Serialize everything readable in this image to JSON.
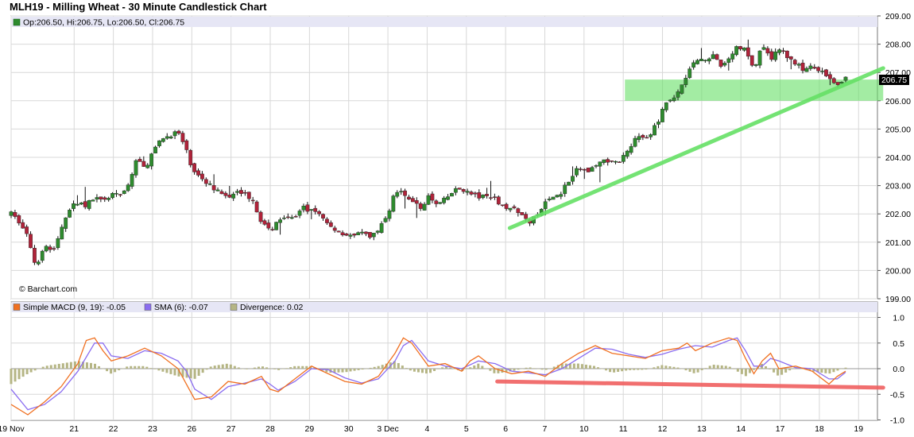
{
  "title": "MLH19 - Milling Wheat - 30 Minute Candlestick Chart",
  "watermark": "© Barchart.com",
  "colors": {
    "up": "#2e8b2e",
    "down": "#b0233a",
    "band": "#e6e6f5",
    "macd": "#f07020",
    "sma": "#8a6cf0",
    "divergence": "#b5b584",
    "green_overlay": "#66e066",
    "red_overlay": "#f06060",
    "grid": "#d8d8d8"
  },
  "price_legend": {
    "text": "Op:206.50, Hi:206.75, Lo:206.50, Cl:206.75"
  },
  "price_last_label": "206.75",
  "macd_legend": [
    {
      "text": "Simple MACD (9, 19): -0.05",
      "color": "#f07020"
    },
    {
      "text": "SMA (6): -0.07",
      "color": "#8a6cf0"
    },
    {
      "text": "Divergence: 0.02",
      "color": "#b5b584"
    }
  ],
  "chart_data": [
    {
      "type": "candlestick",
      "title": "MLH19 - Milling Wheat - 30 Minute Candlestick Chart",
      "yticks": [
        "199.00",
        "200.00",
        "201.00",
        "202.00",
        "203.00",
        "204.00",
        "205.00",
        "206.00",
        "207.00",
        "208.00",
        "209.00"
      ],
      "ylim": [
        199,
        209
      ],
      "xticks": [
        {
          "label": "19 Nov",
          "t": 0
        },
        {
          "label": "21",
          "t": 0.0755
        },
        {
          "label": "22",
          "t": 0.1225
        },
        {
          "label": "23",
          "t": 0.1695
        },
        {
          "label": "26",
          "t": 0.2165
        },
        {
          "label": "27",
          "t": 0.2635
        },
        {
          "label": "28",
          "t": 0.3105
        },
        {
          "label": "29",
          "t": 0.3575
        },
        {
          "label": "30",
          "t": 0.4045
        },
        {
          "label": "3 Dec",
          "t": 0.4515
        },
        {
          "label": "4",
          "t": 0.4985
        },
        {
          "label": "5",
          "t": 0.5455
        },
        {
          "label": "6",
          "t": 0.5925
        },
        {
          "label": "7",
          "t": 0.6395
        },
        {
          "label": "10",
          "t": 0.6865
        },
        {
          "label": "11",
          "t": 0.7335
        },
        {
          "label": "12",
          "t": 0.7805
        },
        {
          "label": "13",
          "t": 0.8275
        },
        {
          "label": "14",
          "t": 0.8745
        },
        {
          "label": "17",
          "t": 0.9215
        },
        {
          "label": "18",
          "t": 0.9685
        },
        {
          "label": "19",
          "t": 1.0155
        }
      ],
      "close_path": [
        [
          0,
          202.0
        ],
        [
          0.01,
          201.7
        ],
        [
          0.02,
          201.2
        ],
        [
          0.03,
          200.1
        ],
        [
          0.04,
          201.0
        ],
        [
          0.05,
          200.6
        ],
        [
          0.06,
          201.5
        ],
        [
          0.07,
          202.2
        ],
        [
          0.08,
          202.4
        ],
        [
          0.09,
          202.3
        ],
        [
          0.1,
          202.6
        ],
        [
          0.11,
          202.4
        ],
        [
          0.12,
          202.7
        ],
        [
          0.13,
          202.6
        ],
        [
          0.14,
          203.0
        ],
        [
          0.15,
          203.9
        ],
        [
          0.16,
          203.6
        ],
        [
          0.17,
          204.2
        ],
        [
          0.18,
          204.6
        ],
        [
          0.19,
          204.8
        ],
        [
          0.2,
          204.9
        ],
        [
          0.21,
          204.2
        ],
        [
          0.22,
          203.4
        ],
        [
          0.23,
          203.2
        ],
        [
          0.24,
          203.0
        ],
        [
          0.25,
          202.7
        ],
        [
          0.26,
          202.5
        ],
        [
          0.27,
          202.9
        ],
        [
          0.28,
          202.7
        ],
        [
          0.29,
          202.5
        ],
        [
          0.3,
          201.7
        ],
        [
          0.31,
          201.4
        ],
        [
          0.32,
          201.8
        ],
        [
          0.33,
          202.0
        ],
        [
          0.34,
          201.9
        ],
        [
          0.35,
          202.2
        ],
        [
          0.36,
          202.1
        ],
        [
          0.37,
          202.0
        ],
        [
          0.38,
          201.6
        ],
        [
          0.39,
          201.4
        ],
        [
          0.4,
          201.3
        ],
        [
          0.41,
          201.2
        ],
        [
          0.42,
          201.3
        ],
        [
          0.43,
          201.2
        ],
        [
          0.44,
          201.4
        ],
        [
          0.45,
          201.9
        ],
        [
          0.46,
          202.8
        ],
        [
          0.47,
          202.7
        ],
        [
          0.48,
          202.5
        ],
        [
          0.49,
          202.2
        ],
        [
          0.5,
          202.6
        ],
        [
          0.51,
          202.3
        ],
        [
          0.52,
          202.5
        ],
        [
          0.53,
          202.8
        ],
        [
          0.54,
          202.9
        ],
        [
          0.55,
          202.7
        ],
        [
          0.56,
          202.6
        ],
        [
          0.57,
          202.6
        ],
        [
          0.58,
          202.5
        ],
        [
          0.59,
          202.3
        ],
        [
          0.6,
          202.2
        ],
        [
          0.61,
          202.0
        ],
        [
          0.62,
          201.7
        ],
        [
          0.63,
          201.9
        ],
        [
          0.64,
          202.4
        ],
        [
          0.65,
          202.6
        ],
        [
          0.66,
          202.8
        ],
        [
          0.67,
          203.3
        ],
        [
          0.68,
          203.6
        ],
        [
          0.69,
          203.5
        ],
        [
          0.7,
          203.7
        ],
        [
          0.71,
          203.9
        ],
        [
          0.72,
          203.8
        ],
        [
          0.73,
          203.9
        ],
        [
          0.74,
          204.3
        ],
        [
          0.75,
          204.8
        ],
        [
          0.76,
          204.6
        ],
        [
          0.77,
          205.0
        ],
        [
          0.78,
          205.6
        ],
        [
          0.79,
          206.1
        ],
        [
          0.8,
          206.3
        ],
        [
          0.81,
          207.0
        ],
        [
          0.82,
          207.4
        ],
        [
          0.83,
          207.5
        ],
        [
          0.84,
          207.6
        ],
        [
          0.85,
          207.2
        ],
        [
          0.86,
          207.5
        ],
        [
          0.87,
          207.9
        ],
        [
          0.88,
          207.8
        ],
        [
          0.89,
          207.1
        ],
        [
          0.9,
          207.9
        ],
        [
          0.91,
          207.5
        ],
        [
          0.92,
          207.8
        ],
        [
          0.93,
          207.6
        ],
        [
          0.94,
          207.3
        ],
        [
          0.95,
          207.1
        ],
        [
          0.96,
          207.2
        ],
        [
          0.97,
          207.0
        ],
        [
          0.98,
          206.9
        ],
        [
          0.99,
          206.6
        ],
        [
          1.0,
          206.75
        ]
      ]
    },
    {
      "type": "line",
      "title": "Simple MACD (9, 19)",
      "yticks": [
        "-1.0",
        "-0.5",
        "0.0",
        "0.5",
        "1.0"
      ],
      "ylim": [
        -1.0,
        1.0
      ],
      "series": [
        {
          "name": "Simple MACD (9, 19)",
          "key": "macd"
        },
        {
          "name": "SMA (6)",
          "key": "sma"
        },
        {
          "name": "Divergence",
          "key": "divergence"
        }
      ],
      "macd": [
        [
          0,
          -0.7
        ],
        [
          0.02,
          -0.9
        ],
        [
          0.04,
          -0.65
        ],
        [
          0.06,
          -0.35
        ],
        [
          0.08,
          0.1
        ],
        [
          0.09,
          0.55
        ],
        [
          0.1,
          0.6
        ],
        [
          0.11,
          0.35
        ],
        [
          0.12,
          0.15
        ],
        [
          0.14,
          0.25
        ],
        [
          0.16,
          0.4
        ],
        [
          0.18,
          0.25
        ],
        [
          0.2,
          0.0
        ],
        [
          0.21,
          -0.3
        ],
        [
          0.22,
          -0.6
        ],
        [
          0.24,
          -0.55
        ],
        [
          0.26,
          -0.25
        ],
        [
          0.28,
          -0.3
        ],
        [
          0.3,
          -0.15
        ],
        [
          0.31,
          -0.4
        ],
        [
          0.32,
          -0.45
        ],
        [
          0.34,
          -0.2
        ],
        [
          0.36,
          0.05
        ],
        [
          0.38,
          -0.1
        ],
        [
          0.4,
          -0.25
        ],
        [
          0.42,
          -0.3
        ],
        [
          0.44,
          -0.15
        ],
        [
          0.46,
          0.3
        ],
        [
          0.47,
          0.6
        ],
        [
          0.48,
          0.5
        ],
        [
          0.5,
          0.05
        ],
        [
          0.52,
          0.1
        ],
        [
          0.54,
          -0.05
        ],
        [
          0.55,
          0.15
        ],
        [
          0.56,
          0.25
        ],
        [
          0.58,
          0.0
        ],
        [
          0.6,
          -0.1
        ],
        [
          0.62,
          -0.05
        ],
        [
          0.64,
          -0.15
        ],
        [
          0.66,
          0.1
        ],
        [
          0.68,
          0.3
        ],
        [
          0.7,
          0.45
        ],
        [
          0.72,
          0.3
        ],
        [
          0.74,
          0.25
        ],
        [
          0.76,
          0.2
        ],
        [
          0.78,
          0.35
        ],
        [
          0.8,
          0.4
        ],
        [
          0.81,
          0.5
        ],
        [
          0.82,
          0.35
        ],
        [
          0.84,
          0.5
        ],
        [
          0.86,
          0.6
        ],
        [
          0.87,
          0.55
        ],
        [
          0.88,
          0.2
        ],
        [
          0.89,
          -0.1
        ],
        [
          0.9,
          0.15
        ],
        [
          0.91,
          0.3
        ],
        [
          0.92,
          0.0
        ],
        [
          0.94,
          0.05
        ],
        [
          0.96,
          -0.05
        ],
        [
          0.98,
          -0.3
        ],
        [
          0.99,
          -0.15
        ],
        [
          1.0,
          -0.05
        ]
      ],
      "sma": [
        [
          0,
          -0.4
        ],
        [
          0.02,
          -0.8
        ],
        [
          0.04,
          -0.7
        ],
        [
          0.06,
          -0.45
        ],
        [
          0.08,
          -0.05
        ],
        [
          0.1,
          0.5
        ],
        [
          0.11,
          0.5
        ],
        [
          0.12,
          0.25
        ],
        [
          0.14,
          0.2
        ],
        [
          0.16,
          0.35
        ],
        [
          0.18,
          0.3
        ],
        [
          0.2,
          0.15
        ],
        [
          0.21,
          -0.05
        ],
        [
          0.22,
          -0.4
        ],
        [
          0.24,
          -0.6
        ],
        [
          0.26,
          -0.35
        ],
        [
          0.28,
          -0.28
        ],
        [
          0.3,
          -0.2
        ],
        [
          0.31,
          -0.3
        ],
        [
          0.32,
          -0.42
        ],
        [
          0.34,
          -0.25
        ],
        [
          0.36,
          0.0
        ],
        [
          0.38,
          -0.02
        ],
        [
          0.4,
          -0.18
        ],
        [
          0.42,
          -0.28
        ],
        [
          0.44,
          -0.2
        ],
        [
          0.46,
          0.15
        ],
        [
          0.47,
          0.45
        ],
        [
          0.48,
          0.55
        ],
        [
          0.5,
          0.15
        ],
        [
          0.52,
          0.05
        ],
        [
          0.54,
          0.0
        ],
        [
          0.56,
          0.15
        ],
        [
          0.58,
          0.1
        ],
        [
          0.6,
          -0.05
        ],
        [
          0.62,
          -0.08
        ],
        [
          0.64,
          -0.12
        ],
        [
          0.66,
          0.0
        ],
        [
          0.68,
          0.2
        ],
        [
          0.7,
          0.4
        ],
        [
          0.72,
          0.38
        ],
        [
          0.74,
          0.28
        ],
        [
          0.76,
          0.22
        ],
        [
          0.78,
          0.28
        ],
        [
          0.8,
          0.38
        ],
        [
          0.82,
          0.45
        ],
        [
          0.84,
          0.42
        ],
        [
          0.86,
          0.55
        ],
        [
          0.87,
          0.6
        ],
        [
          0.88,
          0.35
        ],
        [
          0.89,
          0.05
        ],
        [
          0.9,
          0.05
        ],
        [
          0.91,
          0.2
        ],
        [
          0.92,
          0.15
        ],
        [
          0.94,
          0.02
        ],
        [
          0.96,
          0.0
        ],
        [
          0.98,
          -0.2
        ],
        [
          0.99,
          -0.2
        ],
        [
          1.0,
          -0.07
        ]
      ],
      "divergence": [
        [
          0,
          -0.3
        ],
        [
          0.02,
          -0.1
        ],
        [
          0.04,
          0.05
        ],
        [
          0.06,
          0.1
        ],
        [
          0.08,
          0.15
        ],
        [
          0.1,
          0.1
        ],
        [
          0.12,
          -0.1
        ],
        [
          0.14,
          0.05
        ],
        [
          0.16,
          0.05
        ],
        [
          0.18,
          -0.05
        ],
        [
          0.2,
          -0.15
        ],
        [
          0.22,
          -0.2
        ],
        [
          0.24,
          0.05
        ],
        [
          0.26,
          0.1
        ],
        [
          0.28,
          -0.02
        ],
        [
          0.3,
          0.05
        ],
        [
          0.32,
          -0.03
        ],
        [
          0.34,
          0.05
        ],
        [
          0.36,
          0.05
        ],
        [
          0.38,
          -0.08
        ],
        [
          0.4,
          -0.07
        ],
        [
          0.42,
          -0.02
        ],
        [
          0.44,
          0.05
        ],
        [
          0.46,
          0.15
        ],
        [
          0.48,
          -0.05
        ],
        [
          0.5,
          -0.1
        ],
        [
          0.52,
          0.05
        ],
        [
          0.54,
          -0.05
        ],
        [
          0.56,
          0.1
        ],
        [
          0.58,
          -0.1
        ],
        [
          0.6,
          -0.05
        ],
        [
          0.62,
          0.03
        ],
        [
          0.64,
          -0.03
        ],
        [
          0.66,
          0.1
        ],
        [
          0.68,
          0.1
        ],
        [
          0.7,
          0.05
        ],
        [
          0.72,
          -0.08
        ],
        [
          0.74,
          -0.03
        ],
        [
          0.76,
          -0.02
        ],
        [
          0.78,
          0.07
        ],
        [
          0.8,
          0.02
        ],
        [
          0.82,
          -0.1
        ],
        [
          0.84,
          0.08
        ],
        [
          0.86,
          0.05
        ],
        [
          0.88,
          -0.15
        ],
        [
          0.9,
          0.1
        ],
        [
          0.92,
          -0.15
        ],
        [
          0.94,
          0.03
        ],
        [
          0.96,
          -0.05
        ],
        [
          0.98,
          -0.1
        ],
        [
          1.0,
          0.02
        ]
      ]
    }
  ],
  "annotations": {
    "green_band": {
      "t0": 0.7355,
      "t1": 1.045,
      "y0": 206.0,
      "y1": 206.75
    },
    "green_trendline": {
      "t0": 0.5975,
      "y0": 201.5,
      "t1": 1.045,
      "y1": 207.15
    },
    "red_line": {
      "t0": 0.5825,
      "v0": -0.25,
      "t1": 1.045,
      "v1": -0.37
    }
  }
}
